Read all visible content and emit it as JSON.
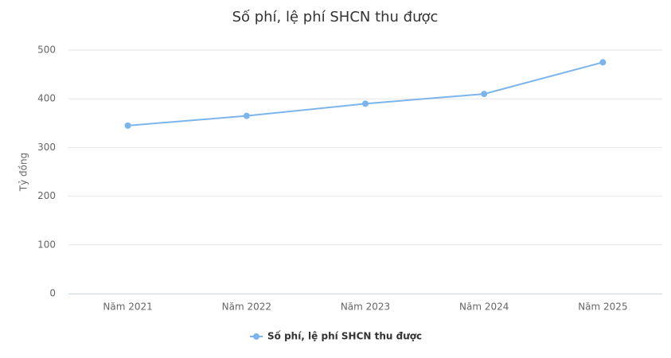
{
  "chart_data": {
    "type": "line",
    "title": "Số phí, lệ phí SHCN thu được",
    "y_label": "Tỷ đồng",
    "categories": [
      "Năm 2021",
      "Năm 2022",
      "Năm 2023",
      "Năm 2024",
      "Năm 2025"
    ],
    "series": [
      {
        "name": "Số phí, lệ phí SHCN thu được",
        "color": "#7cb5ec",
        "values": [
          345,
          365,
          390,
          410,
          475
        ]
      }
    ],
    "ylim": [
      0,
      500
    ],
    "yticks": [
      0,
      100,
      200,
      300,
      400,
      500
    ],
    "grid": true,
    "legend": "bottom"
  }
}
